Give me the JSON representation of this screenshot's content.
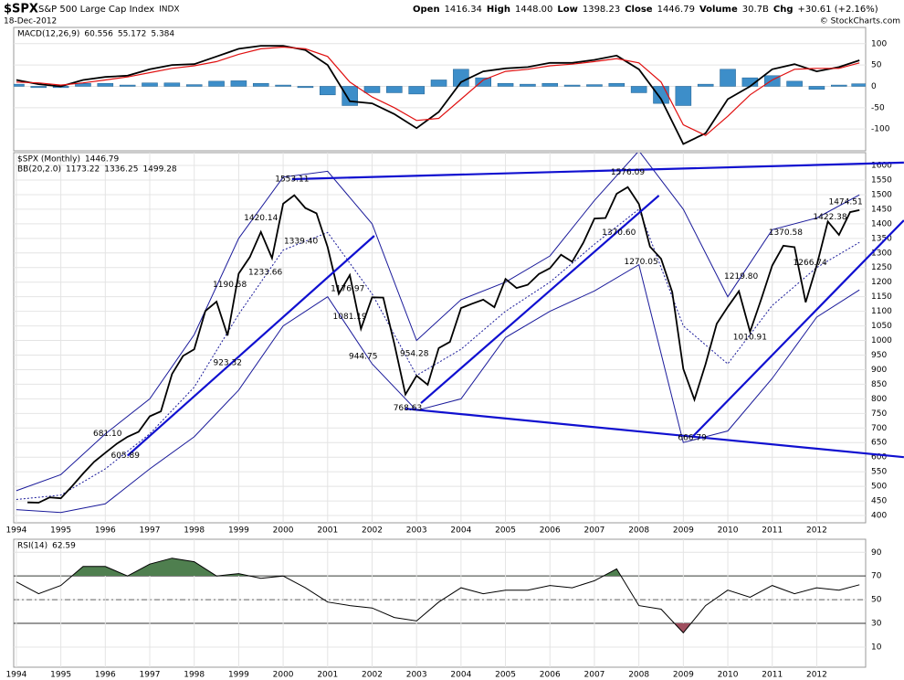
{
  "header": {
    "symbol": "$SPX",
    "name": "S&P 500 Large Cap Index",
    "exchange": "INDX",
    "date": "18-Dec-2012",
    "quote": [
      [
        "Open",
        "1416.34"
      ],
      [
        "High",
        "1448.00"
      ],
      [
        "Low",
        "1398.23"
      ],
      [
        "Close",
        "1446.79"
      ],
      [
        "Volume",
        "30.7B"
      ],
      [
        "Chg",
        "+30.61 (+2.16%)"
      ]
    ],
    "credit": "© StockCharts.com"
  },
  "chart_data": [
    {
      "type": "line",
      "label": "MACD(12,26,9)",
      "xlim": [
        1993.94,
        2013.1
      ],
      "ylim": [
        -151,
        138
      ],
      "yticks": [
        -100,
        -50,
        0,
        50,
        100
      ],
      "x": [
        1994.0,
        1994.5,
        1995.0,
        1995.5,
        1996.0,
        1996.5,
        1997.0,
        1997.5,
        1998.0,
        1998.5,
        1999.0,
        1999.5,
        2000.0,
        2000.5,
        2001.0,
        2001.5,
        2002.0,
        2002.5,
        2003.0,
        2003.5,
        2004.0,
        2004.5,
        2005.0,
        2005.5,
        2006.0,
        2006.5,
        2007.0,
        2007.5,
        2008.0,
        2008.5,
        2009.0,
        2009.5,
        2010.0,
        2010.5,
        2011.0,
        2011.5,
        2012.0,
        2012.5,
        2012.96
      ],
      "series": [
        {
          "style": "line",
          "color": "#000000",
          "reading": 60.556,
          "values": [
            15,
            5,
            0,
            15,
            22,
            25,
            40,
            50,
            52,
            70,
            88,
            95,
            95,
            85,
            50,
            -35,
            -40,
            -65,
            -98,
            -60,
            10,
            35,
            42,
            45,
            55,
            55,
            62,
            72,
            40,
            -30,
            -135,
            -110,
            -30,
            0,
            40,
            52,
            35,
            45,
            61
          ]
        },
        {
          "style": "line",
          "color": "#e01010",
          "reading": 55.172,
          "values": [
            10,
            8,
            3,
            8,
            15,
            22,
            32,
            42,
            48,
            58,
            75,
            88,
            92,
            88,
            70,
            10,
            -25,
            -50,
            -80,
            -75,
            -30,
            15,
            35,
            40,
            48,
            52,
            58,
            65,
            55,
            10,
            -90,
            -115,
            -70,
            -20,
            15,
            40,
            42,
            42,
            55
          ]
        },
        {
          "style": "bar",
          "color": "#3d8ec9",
          "reading": 5.384,
          "values": [
            5,
            -3,
            -3,
            7,
            7,
            3,
            8,
            8,
            4,
            12,
            13,
            7,
            3,
            -3,
            -20,
            -45,
            -15,
            -15,
            -18,
            15,
            40,
            20,
            7,
            5,
            7,
            3,
            4,
            7,
            -15,
            -40,
            -45,
            5,
            40,
            20,
            25,
            12,
            -7,
            3,
            6
          ]
        }
      ]
    },
    {
      "type": "line",
      "label": "$SPX (Monthly)",
      "reading": 1446.79,
      "xlim": [
        1993.94,
        2013.1
      ],
      "ylim": [
        375,
        1644
      ],
      "yticks": [
        400,
        450,
        500,
        550,
        600,
        650,
        700,
        750,
        800,
        850,
        900,
        950,
        1000,
        1050,
        1100,
        1150,
        1200,
        1250,
        1300,
        1350,
        1400,
        1450,
        1500,
        1550,
        1600
      ],
      "xticks": [
        1994,
        1995,
        1996,
        1997,
        1998,
        1999,
        2000,
        2001,
        2002,
        2003,
        2004,
        2005,
        2006,
        2007,
        2008,
        2009,
        2010,
        2011,
        2012
      ],
      "x": [
        1994.25,
        1994.5,
        1994.75,
        1995.0,
        1995.25,
        1995.5,
        1995.75,
        1996.0,
        1996.25,
        1996.5,
        1996.75,
        1997.0,
        1997.25,
        1997.5,
        1997.75,
        1998.0,
        1998.25,
        1998.5,
        1998.75,
        1999.0,
        1999.25,
        1999.5,
        1999.75,
        2000.0,
        2000.25,
        2000.5,
        2000.75,
        2001.0,
        2001.25,
        2001.5,
        2001.75,
        2002.0,
        2002.25,
        2002.5,
        2002.75,
        2003.0,
        2003.25,
        2003.5,
        2003.75,
        2004.0,
        2004.25,
        2004.5,
        2004.75,
        2005.0,
        2005.25,
        2005.5,
        2005.75,
        2006.0,
        2006.25,
        2006.5,
        2006.75,
        2007.0,
        2007.25,
        2007.5,
        2007.75,
        2008.0,
        2008.25,
        2008.5,
        2008.75,
        2009.0,
        2009.25,
        2009.5,
        2009.75,
        2010.0,
        2010.25,
        2010.5,
        2010.75,
        2011.0,
        2011.25,
        2011.5,
        2011.75,
        2012.0,
        2012.25,
        2012.5,
        2012.75,
        2012.96
      ],
      "series": [
        {
          "style": "line",
          "color": "#000000",
          "values": [
            445,
            444,
            462,
            459,
            500,
            544,
            584,
            615,
            645,
            670,
            687,
            740,
            757,
            885,
            947,
            970,
            1101,
            1133,
            1017,
            1229,
            1286,
            1372,
            1282,
            1469,
            1498,
            1454,
            1436,
            1320,
            1160,
            1224,
            1040,
            1148,
            1147,
            989,
            815,
            879,
            848,
            974,
            995,
            1111,
            1126,
            1140,
            1114,
            1211,
            1180,
            1191,
            1228,
            1248,
            1294,
            1270,
            1335,
            1418,
            1420,
            1503,
            1526,
            1468,
            1322,
            1280,
            1166,
            903,
            797,
            919,
            1057,
            1115,
            1169,
            1030,
            1141,
            1257,
            1325,
            1320,
            1131,
            1257,
            1408,
            1362,
            1440,
            1447
          ]
        }
      ],
      "bands": {
        "label": "BB(20,2.0)",
        "readings": [
          1173.22,
          1336.25,
          1499.28
        ],
        "color": "#1a1a9a",
        "x": [
          1994,
          1995,
          1996,
          1997,
          1998,
          1999,
          2000,
          2001,
          2002,
          2003,
          2004,
          2005,
          2006,
          2007,
          2008,
          2009,
          2010,
          2011,
          2012,
          2012.96
        ],
        "upper": [
          485,
          540,
          680,
          800,
          1020,
          1350,
          1560,
          1580,
          1400,
          1000,
          1140,
          1200,
          1290,
          1480,
          1650,
          1450,
          1150,
          1380,
          1420,
          1499.28
        ],
        "middle": [
          455,
          470,
          560,
          680,
          840,
          1090,
          1310,
          1370,
          1160,
          880,
          970,
          1100,
          1200,
          1330,
          1450,
          1050,
          920,
          1120,
          1250,
          1336.25
        ],
        "lower": [
          420,
          410,
          440,
          560,
          670,
          830,
          1050,
          1150,
          920,
          760,
          800,
          1010,
          1100,
          1170,
          1260,
          650,
          690,
          870,
          1080,
          1173.22
        ]
      },
      "trendlines": {
        "color": "#1010d0",
        "lines": [
          {
            "x": [
              2000.2,
              2013.96
            ],
            "values": [
              1553,
              1610
            ]
          },
          {
            "x": [
              1996.5,
              2002.05
            ],
            "values": [
              605,
              1359
            ]
          },
          {
            "x": [
              2003.1,
              2008.45
            ],
            "values": [
              785,
              1497
            ]
          },
          {
            "x": [
              2009.2,
              2013.96
            ],
            "values": [
              669,
              1412
            ]
          },
          {
            "x": [
              2002.75,
              2013.96
            ],
            "values": [
              766,
              600
            ]
          }
        ]
      },
      "annotations": [
        {
          "x": 2000.2,
          "value": 1553.11,
          "label": "1553.11"
        },
        {
          "x": 1999.5,
          "value": 1420.14,
          "label": "1420.14"
        },
        {
          "x": 2000.4,
          "value": 1339.4,
          "label": "1339.40"
        },
        {
          "x": 1998.8,
          "value": 1190.58,
          "label": "1190.58"
        },
        {
          "x": 1999.6,
          "value": 1233.66,
          "label": "1233.66"
        },
        {
          "x": 1998.75,
          "value": 923.32,
          "label": "923.32"
        },
        {
          "x": 1996.05,
          "value": 681.1,
          "label": "681.10"
        },
        {
          "x": 1996.45,
          "value": 605.89,
          "label": "605.89"
        },
        {
          "x": 2001.45,
          "value": 1176.97,
          "label": "1176.97"
        },
        {
          "x": 2001.5,
          "value": 1081.19,
          "label": "1081.19"
        },
        {
          "x": 2001.8,
          "value": 944.75,
          "label": "944.75"
        },
        {
          "x": 2002.95,
          "value": 954.28,
          "label": "954.28"
        },
        {
          "x": 2002.8,
          "value": 768.63,
          "label": "768.63"
        },
        {
          "x": 2007.75,
          "value": 1576.09,
          "label": "1576.09"
        },
        {
          "x": 2007.55,
          "value": 1370.6,
          "label": "1370.60"
        },
        {
          "x": 2008.05,
          "value": 1270.05,
          "label": "1270.05"
        },
        {
          "x": 2009.2,
          "value": 666.79,
          "label": "666.79"
        },
        {
          "x": 2010.3,
          "value": 1219.8,
          "label": "1219.80"
        },
        {
          "x": 2010.5,
          "value": 1010.91,
          "label": "1010.91"
        },
        {
          "x": 2011.3,
          "value": 1370.58,
          "label": "1370.58"
        },
        {
          "x": 2011.85,
          "value": 1266.74,
          "label": "1266.74"
        },
        {
          "x": 2012.3,
          "value": 1422.38,
          "label": "1422.38"
        },
        {
          "x": 2012.65,
          "value": 1474.51,
          "label": "1474.51"
        }
      ]
    },
    {
      "type": "line",
      "label": "RSI(14)",
      "reading": 62.59,
      "xlim": [
        1993.94,
        2013.1
      ],
      "ylim": [
        -7,
        101
      ],
      "yticks": [
        10,
        30,
        50,
        70,
        90
      ],
      "xticks": [
        1994,
        1995,
        1996,
        1997,
        1998,
        1999,
        2000,
        2001,
        2002,
        2003,
        2004,
        2005,
        2006,
        2007,
        2008,
        2009,
        2010,
        2011,
        2012
      ],
      "overbought": 70,
      "oversold": 30,
      "colors": {
        "line": "#000000",
        "overbought": "#4f7f4f",
        "oversold": "#9f4f5f"
      },
      "x": [
        1994.0,
        1994.5,
        1995.0,
        1995.5,
        1996.0,
        1996.5,
        1997.0,
        1997.5,
        1998.0,
        1998.5,
        1999.0,
        1999.5,
        2000.0,
        2000.5,
        2001.0,
        2001.5,
        2002.0,
        2002.5,
        2003.0,
        2003.5,
        2004.0,
        2004.5,
        2005.0,
        2005.5,
        2006.0,
        2006.5,
        2007.0,
        2007.5,
        2008.0,
        2008.5,
        2009.0,
        2009.5,
        2010.0,
        2010.5,
        2011.0,
        2011.5,
        2012.0,
        2012.5,
        2012.96
      ],
      "values": [
        65,
        55,
        62,
        78,
        78,
        70,
        80,
        85,
        82,
        70,
        72,
        68,
        70,
        60,
        48,
        45,
        43,
        35,
        32,
        48,
        60,
        55,
        58,
        58,
        62,
        60,
        66,
        76,
        45,
        42,
        22,
        45,
        58,
        52,
        62,
        55,
        60,
        58,
        62.59
      ]
    }
  ]
}
